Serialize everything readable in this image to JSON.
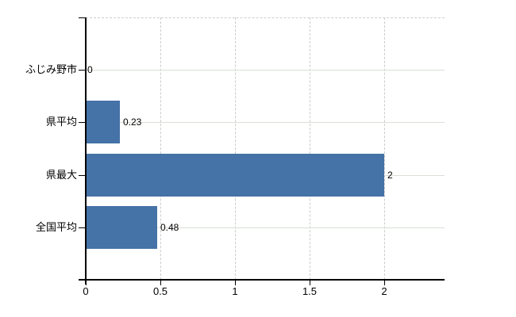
{
  "chart_data": {
    "type": "bar",
    "orientation": "horizontal",
    "title": "",
    "categories": [
      "ふじみ野市",
      "県平均",
      "県最大",
      "全国平均"
    ],
    "values": [
      0,
      0.23,
      2,
      0.48
    ],
    "value_labels": [
      "0",
      "0.23",
      "2",
      "0.48"
    ],
    "x_ticks": [
      0,
      0.5,
      1,
      1.5,
      2
    ],
    "x_tick_labels": [
      "0",
      "0.5",
      "1",
      "1.5",
      "2"
    ],
    "xlim": [
      0,
      2.4
    ],
    "grid": true,
    "legend": false,
    "colors": {
      "bar": "#4572a7",
      "category_gridline": "#d9e0d6",
      "value_gridline": "#cccccc",
      "plot_border": "#cccccc",
      "axis": "#000000",
      "text": "#000000",
      "background": "#ffffff"
    }
  }
}
